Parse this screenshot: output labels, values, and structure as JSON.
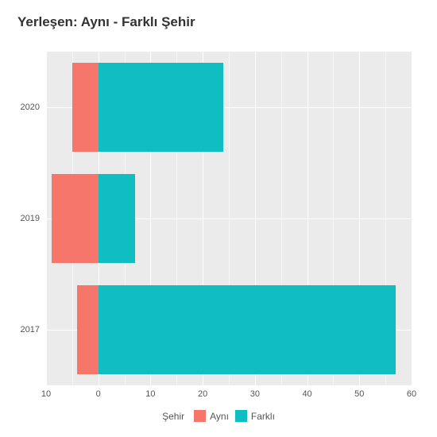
{
  "chart": {
    "type": "bar-diverging-horizontal",
    "title": "Yerleşen: Aynı - Farklı Şehir",
    "title_fontsize": 17,
    "background_color": "#ffffff",
    "panel_color": "#ebebeb",
    "grid_color": "#ffffff",
    "x": {
      "min": -10,
      "max": 60,
      "ticks": [
        -10,
        0,
        10,
        20,
        30,
        40,
        50,
        60
      ],
      "tick_labels": [
        "10",
        "0",
        "10",
        "20",
        "30",
        "40",
        "50",
        "60"
      ],
      "minor_step": 5,
      "label_fontsize": 11
    },
    "y": {
      "categories": [
        "2017",
        "2019",
        "2020"
      ],
      "label_fontsize": 11
    },
    "series": [
      {
        "key": "ayni",
        "label": "Aynı",
        "color": "#f7766c",
        "values": {
          "2017": -4,
          "2019": -9,
          "2020": -5
        }
      },
      {
        "key": "farkli",
        "label": "Farklı",
        "color": "#10bdc1",
        "values": {
          "2017": 57,
          "2019": 7,
          "2020": 24
        }
      }
    ],
    "bar_width_ratio": 0.8,
    "legend": {
      "title": "Şehir",
      "fontsize": 12
    }
  }
}
